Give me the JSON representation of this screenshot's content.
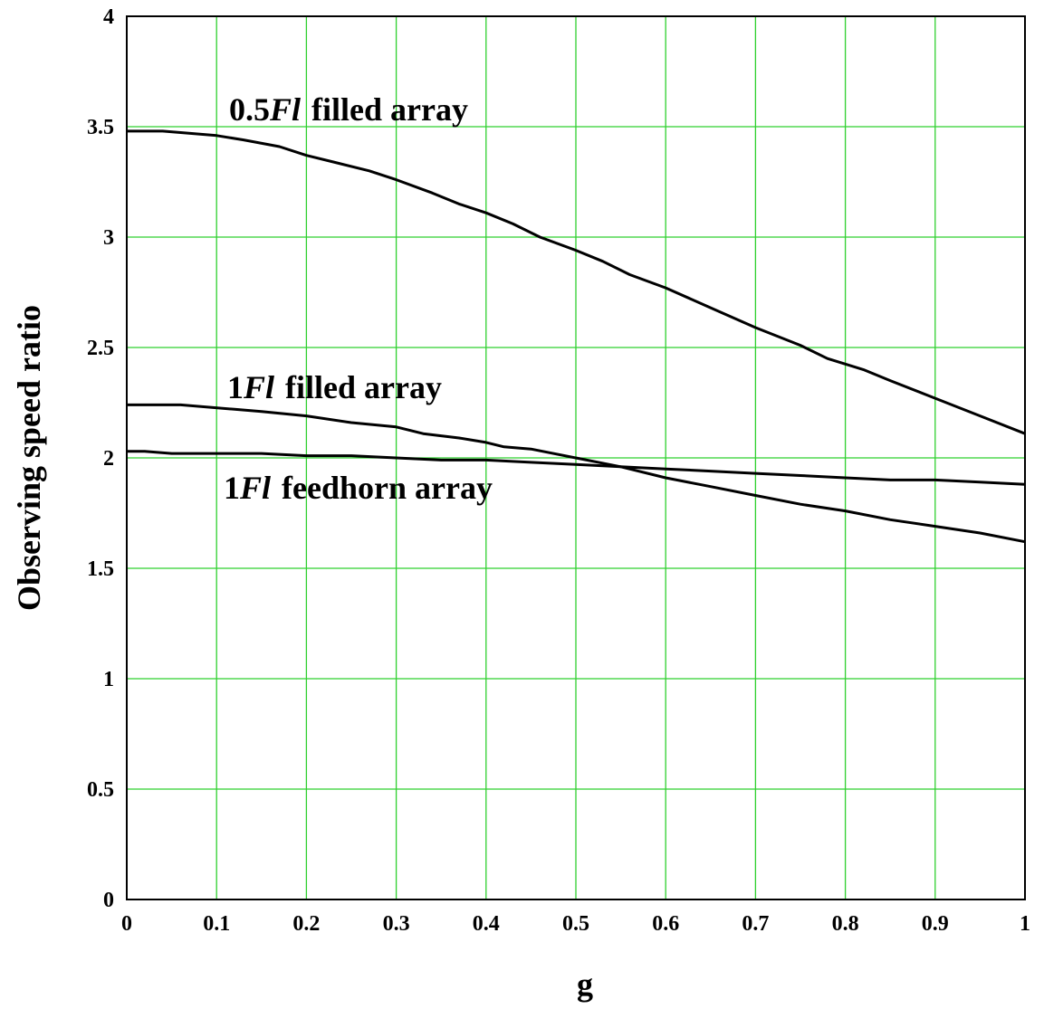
{
  "chart_data": {
    "type": "line",
    "xlabel": "g",
    "ylabel": "Observing speed ratio",
    "xlim": [
      0,
      1
    ],
    "ylim": [
      0,
      4
    ],
    "x_ticks": [
      "0",
      "0.1",
      "0.2",
      "0.3",
      "0.4",
      "0.5",
      "0.6",
      "0.7",
      "0.8",
      "0.9",
      "1"
    ],
    "y_ticks": [
      "0",
      "0.5",
      "1",
      "1.5",
      "2",
      "2.5",
      "3",
      "3.5",
      "4"
    ],
    "grid": true,
    "annotations": [
      {
        "prefix": "0.5",
        "italic": "Fl",
        "suffix": "filled array",
        "series": 0
      },
      {
        "prefix": "1",
        "italic": "Fl",
        "suffix": "filled array",
        "series": 1
      },
      {
        "prefix": "1",
        "italic": "Fl",
        "suffix": "feedhorn array",
        "series": 2
      }
    ],
    "series": [
      {
        "x": [
          0,
          0.04,
          0.1,
          0.13,
          0.17,
          0.2,
          0.23,
          0.27,
          0.3,
          0.34,
          0.37,
          0.4,
          0.43,
          0.46,
          0.5,
          0.53,
          0.56,
          0.6,
          0.65,
          0.7,
          0.75,
          0.78,
          0.82,
          0.85,
          0.9,
          0.95,
          1
        ],
        "y": [
          3.48,
          3.48,
          3.46,
          3.44,
          3.41,
          3.37,
          3.34,
          3.3,
          3.26,
          3.2,
          3.15,
          3.11,
          3.06,
          3.0,
          2.94,
          2.89,
          2.83,
          2.77,
          2.68,
          2.59,
          2.51,
          2.45,
          2.4,
          2.35,
          2.27,
          2.19,
          2.11
        ]
      },
      {
        "x": [
          0,
          0.06,
          0.12,
          0.15,
          0.2,
          0.25,
          0.3,
          0.33,
          0.37,
          0.4,
          0.42,
          0.45,
          0.5,
          0.55,
          0.6,
          0.65,
          0.7,
          0.75,
          0.8,
          0.85,
          0.9,
          0.95,
          1
        ],
        "y": [
          2.24,
          2.24,
          2.22,
          2.21,
          2.19,
          2.16,
          2.14,
          2.11,
          2.09,
          2.07,
          2.05,
          2.04,
          2.0,
          1.96,
          1.91,
          1.87,
          1.83,
          1.79,
          1.76,
          1.72,
          1.69,
          1.66,
          1.62
        ]
      },
      {
        "x": [
          0,
          0.02,
          0.05,
          0.1,
          0.15,
          0.2,
          0.25,
          0.3,
          0.35,
          0.4,
          0.45,
          0.5,
          0.55,
          0.6,
          0.65,
          0.7,
          0.75,
          0.8,
          0.85,
          0.9,
          0.95,
          1
        ],
        "y": [
          2.03,
          2.03,
          2.02,
          2.02,
          2.02,
          2.01,
          2.01,
          2.0,
          1.99,
          1.99,
          1.98,
          1.97,
          1.96,
          1.95,
          1.94,
          1.93,
          1.92,
          1.91,
          1.9,
          1.9,
          1.89,
          1.88
        ]
      }
    ]
  }
}
